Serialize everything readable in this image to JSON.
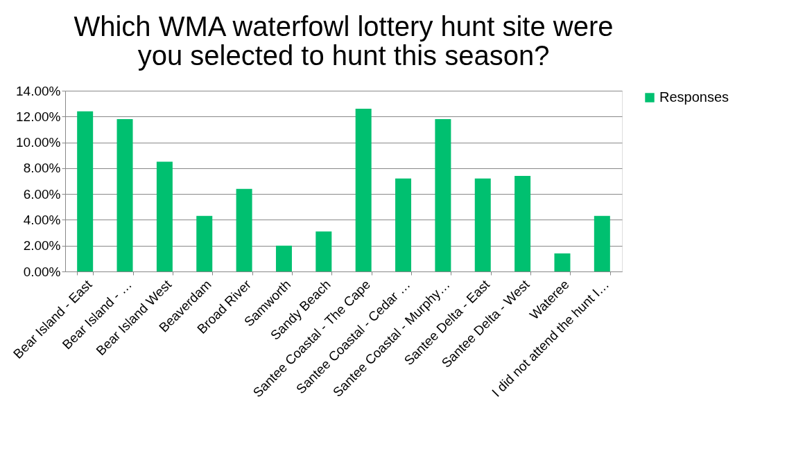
{
  "chart_data": {
    "type": "bar",
    "title": "Which WMA waterfowl lottery hunt site were you selected to hunt this season?",
    "categories": [
      "Bear Island - East",
      "Bear Island - …",
      "Bear Island West",
      "Beaverdam",
      "Broad River",
      "Samworth",
      "Sandy Beach",
      "Santee Coastal - The Cape",
      "Santee Coastal - Cedar …",
      "Santee Coastal - Murphy…",
      "Santee Delta - East",
      "Santee Delta - West",
      "Wateree",
      "I did not attend the hunt I…"
    ],
    "series": [
      {
        "name": "Responses",
        "color": "#00c070",
        "values": [
          12.4,
          11.8,
          8.5,
          4.3,
          6.4,
          2.0,
          3.1,
          12.6,
          7.2,
          11.8,
          7.2,
          7.4,
          1.4,
          4.3
        ]
      }
    ],
    "ylim": [
      0,
      14
    ],
    "yticks": [
      {
        "value": 0,
        "label": "0.00%"
      },
      {
        "value": 2,
        "label": "2.00%"
      },
      {
        "value": 4,
        "label": "4.00%"
      },
      {
        "value": 6,
        "label": "6.00%"
      },
      {
        "value": 8,
        "label": "8.00%"
      },
      {
        "value": 10,
        "label": "10.00%"
      },
      {
        "value": 12,
        "label": "12.00%"
      },
      {
        "value": 14,
        "label": "14.00%"
      }
    ],
    "grid": "y",
    "legend": "right"
  }
}
